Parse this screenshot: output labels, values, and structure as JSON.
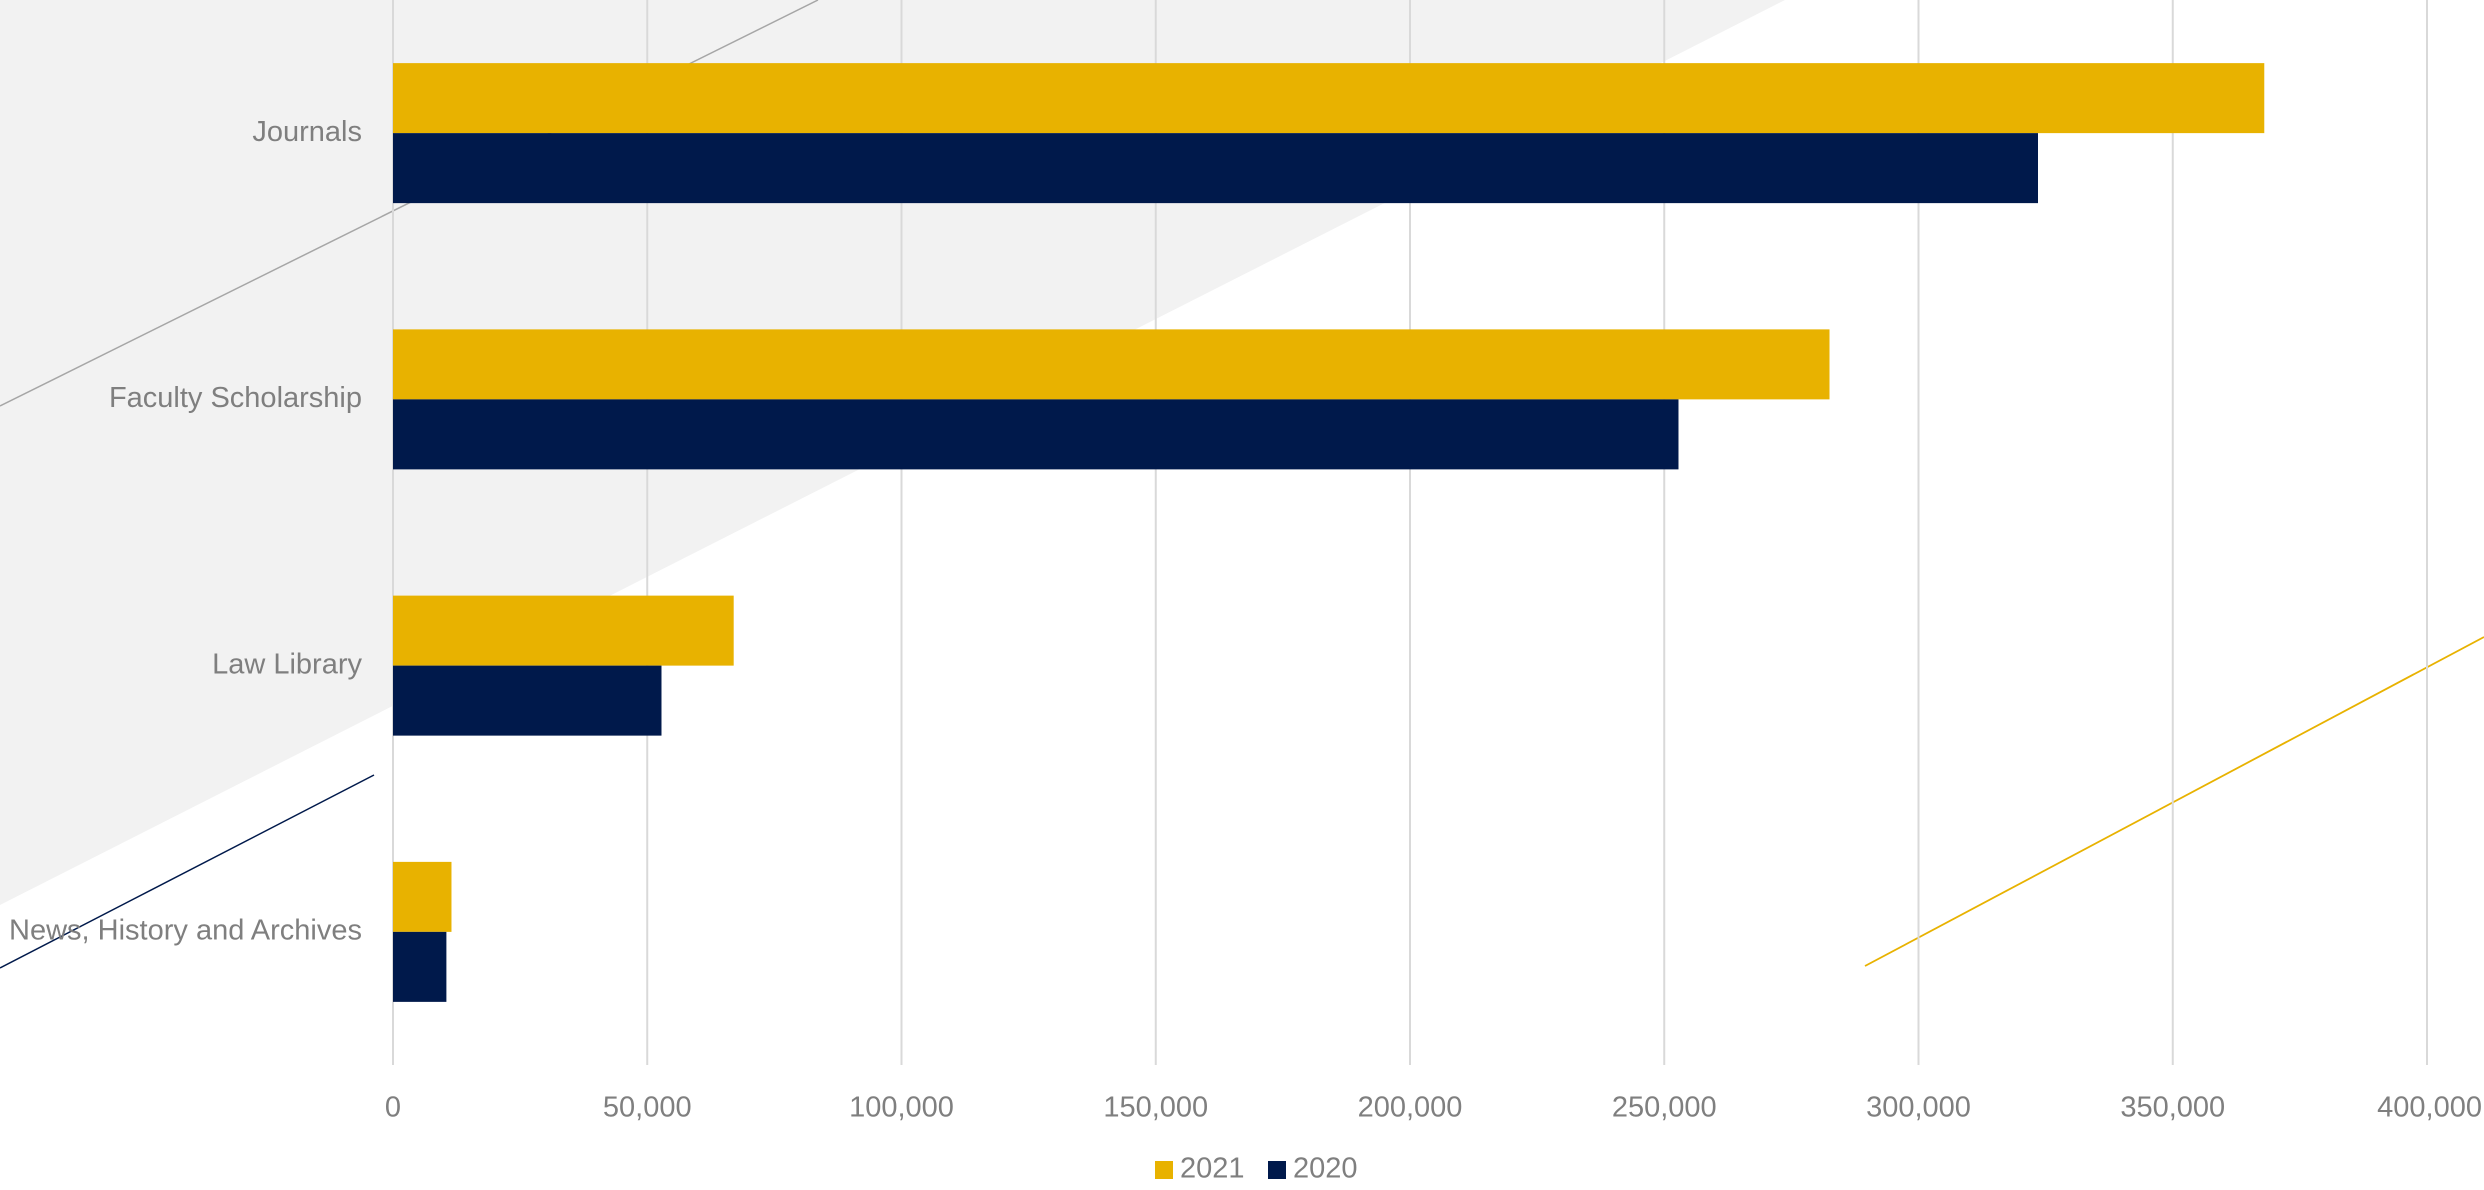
{
  "chart_data": {
    "type": "bar",
    "orientation": "horizontal",
    "title": "",
    "xlabel": "",
    "ylabel": "",
    "categories": [
      "Journals",
      "Faculty Scholarship",
      "Law Library",
      "News, History and Archives"
    ],
    "series": [
      {
        "name": "2021",
        "color": "#E8B200",
        "values": [
          368000,
          282500,
          67000,
          11500
        ]
      },
      {
        "name": "2020",
        "color": "#00194B",
        "values": [
          323500,
          252800,
          52800,
          10500
        ]
      }
    ],
    "xlim": [
      0,
      400000
    ],
    "xticks": [
      0,
      50000,
      100000,
      150000,
      200000,
      250000,
      300000,
      350000,
      400000
    ],
    "xtick_labels": [
      "0",
      "50,000",
      "100,000",
      "150,000",
      "200,000",
      "250,000",
      "300,000",
      "350,000",
      "400,000"
    ],
    "grid": true,
    "legend_position": "bottom"
  }
}
